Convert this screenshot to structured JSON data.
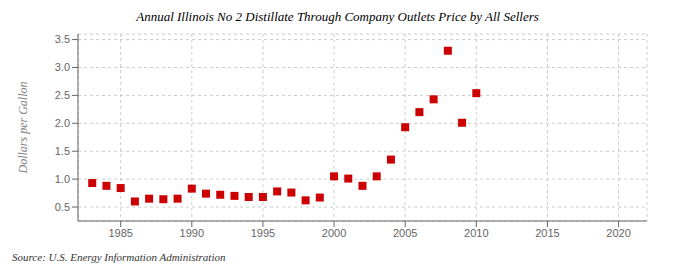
{
  "chart_data": {
    "type": "scatter",
    "title": "Annual Illinois No 2 Distillate Through Company Outlets Price by All Sellers",
    "y_label": "Dollars per Gallon",
    "annotations": [
      "Source: U.S. Energy Information Administration"
    ],
    "x": [
      1983,
      1984,
      1985,
      1986,
      1987,
      1988,
      1989,
      1990,
      1991,
      1992,
      1993,
      1994,
      1995,
      1996,
      1997,
      1998,
      1999,
      2000,
      2001,
      2002,
      2003,
      2004,
      2005,
      2006,
      2007,
      2008,
      2009,
      2010
    ],
    "values": [
      0.93,
      0.88,
      0.84,
      0.6,
      0.65,
      0.64,
      0.65,
      0.83,
      0.74,
      0.72,
      0.7,
      0.68,
      0.68,
      0.78,
      0.76,
      0.62,
      0.67,
      1.05,
      1.01,
      0.88,
      1.05,
      1.35,
      1.93,
      2.2,
      2.43,
      3.3,
      2.01,
      2.54
    ],
    "color": "#cc0000",
    "marker": "square",
    "xlim": [
      1982,
      2022
    ],
    "xticks": [
      1985,
      1990,
      1995,
      2000,
      2005,
      2010,
      2015,
      2020
    ],
    "ylim": [
      0.25,
      3.6
    ],
    "yticks": [
      0.5,
      {
        "value": 1.0,
        "label": "1.0"
      },
      1.5,
      {
        "value": 2.0,
        "label": "2.0"
      },
      2.5,
      {
        "value": 3.0,
        "label": "3.0"
      },
      3.5
    ],
    "grid": true
  }
}
